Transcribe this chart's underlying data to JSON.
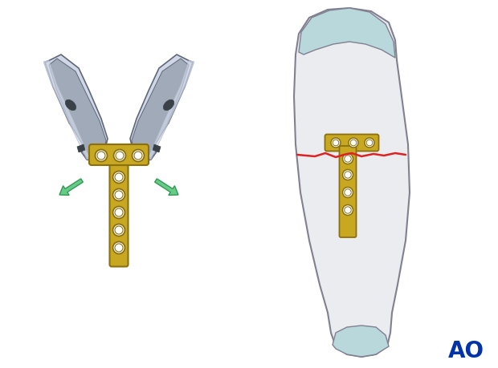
{
  "bg_color": "#ffffff",
  "plate_color": "#C8A820",
  "plate_dark": "#8B7010",
  "plate_hole_color": "#ffffff",
  "plier_light": "#d0d8e8",
  "plier_mid": "#a0aab8",
  "plier_dark": "#606878",
  "plier_darker": "#3a4248",
  "arrow_color": "#66cc88",
  "arrow_edge": "#339955",
  "bone_fill": "#eaecf0",
  "bone_outline": "#808090",
  "cartilage_color": "#b8d8dc",
  "fracture_color": "#dd2222",
  "ao_color": "#0033aa",
  "ao_text": "AO",
  "ao_fontsize": 20
}
